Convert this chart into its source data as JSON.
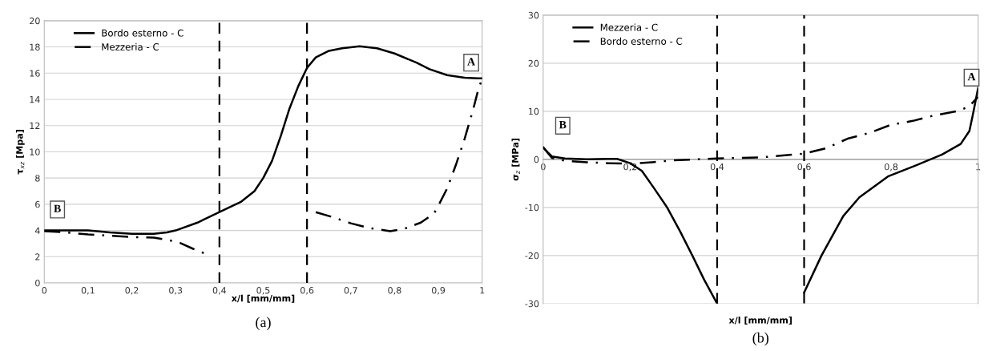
{
  "chart_data": [
    {
      "type": "line",
      "xlabel": "x/l [mm/mm]",
      "ylabel": "τ$_{xz}$ [Mpa]",
      "xlim": [
        0,
        1
      ],
      "ylim": [
        0,
        20
      ],
      "xticks": [
        0,
        {
          "value": 0.1,
          "label": "0,1"
        },
        {
          "value": 0.2,
          "label": "0,2"
        },
        {
          "value": 0.3,
          "label": "0,3"
        },
        {
          "value": 0.4,
          "label": "0,4"
        },
        {
          "value": 0.5,
          "label": "0,5"
        },
        {
          "value": 0.6,
          "label": "0,6"
        },
        {
          "value": 0.7,
          "label": "0,7"
        },
        {
          "value": 0.8,
          "label": "0,8"
        },
        {
          "value": 0.9,
          "label": "0,9"
        },
        1
      ],
      "yticks": [
        0,
        2,
        4,
        6,
        8,
        10,
        12,
        14,
        16,
        18,
        20
      ],
      "grid": "y",
      "legend": "top left",
      "series": [
        {
          "name": "Bordo esterno - C",
          "color": "#000000",
          "line_style": "solid",
          "x": [
            0,
            0.1,
            0.15,
            0.2,
            0.25,
            0.28,
            0.3,
            0.35,
            0.4,
            0.45,
            0.48,
            0.5,
            0.52,
            0.54,
            0.56,
            0.58,
            0.6,
            0.62,
            0.65,
            0.68,
            0.72,
            0.76,
            0.8,
            0.85,
            0.88,
            0.92,
            0.96,
            0.99,
            1
          ],
          "values": [
            4,
            4,
            3.85,
            3.75,
            3.75,
            3.85,
            4,
            4.6,
            5.4,
            6.2,
            7,
            8,
            9.3,
            11.2,
            13.3,
            15,
            16.4,
            17.2,
            17.7,
            17.9,
            18.05,
            17.9,
            17.5,
            16.8,
            16.3,
            15.85,
            15.65,
            15.6,
            15.6
          ]
        },
        {
          "name": "Mezzeria - C",
          "color": "#000000",
          "line_style": "dashdot",
          "x": [
            0,
            0.05,
            0.1,
            0.15,
            0.2,
            0.25,
            0.28,
            0.31,
            0.34,
            0.37,
            0.5,
            0.62,
            0.66,
            0.7,
            0.74,
            0.79,
            0.82,
            0.86,
            0.89,
            0.9,
            0.92,
            0.94,
            0.96,
            0.98,
            0.99,
            1
          ],
          "values": [
            3.95,
            3.85,
            3.7,
            3.6,
            3.5,
            3.45,
            3.3,
            3.05,
            2.6,
            2.2,
            null,
            5.4,
            5,
            4.55,
            4.2,
            3.95,
            4.1,
            4.6,
            5.3,
            5.9,
            7.2,
            9,
            11,
            13.3,
            14.6,
            15.6
          ]
        }
      ],
      "ref_lines": [
        {
          "axis": "x",
          "value": 0.4,
          "color": "#000000",
          "line_style": "dashed"
        },
        {
          "axis": "x",
          "value": 0.6,
          "color": "#000000",
          "line_style": "dashed"
        }
      ],
      "annotations": [
        {
          "text": "B",
          "x": 0.03,
          "y": 5.6
        },
        {
          "text": "A",
          "x": 0.975,
          "y": 16.8
        },
        "(a)"
      ]
    },
    {
      "type": "line",
      "xlabel": "x/l [mm/mm]",
      "ylabel": "σ$_{z}$ [MPa]",
      "xlim": [
        0,
        1
      ],
      "ylim": [
        -30,
        30
      ],
      "xticks": [
        0,
        {
          "value": 0.2,
          "label": "0,2"
        },
        {
          "value": 0.4,
          "label": "0,4"
        },
        {
          "value": 0.6,
          "label": "0,6"
        },
        {
          "value": 0.8,
          "label": "0,8"
        },
        1
      ],
      "yticks": [
        -30,
        -20,
        -10,
        0,
        10,
        20,
        30
      ],
      "grid": "y",
      "legend": "top left",
      "series": [
        {
          "name": "Mezzeria - C",
          "color": "#000000",
          "line_style": "solid",
          "x": [
            0,
            0.01,
            0.02,
            0.05,
            0.1,
            0.15,
            0.17,
            0.2,
            0.227,
            0.255,
            0.285,
            0.315,
            0.343,
            0.37,
            0.4,
            0.5,
            0.6,
            0.64,
            0.69,
            0.727,
            0.794,
            0.856,
            0.917,
            0.96,
            0.98,
            0.988,
            1
          ],
          "values": [
            2.5,
            1.5,
            0.6,
            0.2,
            0,
            0.1,
            0.1,
            -0.8,
            -2.4,
            -6,
            -10,
            -15,
            -20,
            -25,
            -30,
            null,
            -27.7,
            -20,
            -11.8,
            -7.9,
            -3.5,
            -1.3,
            1,
            3.2,
            5.9,
            9.3,
            14.8
          ]
        },
        {
          "name": "Bordo esterno - C",
          "color": "#000000",
          "line_style": "dashdot",
          "x": [
            0,
            0.02,
            0.05,
            0.1,
            0.15,
            0.2,
            0.25,
            0.3,
            0.4,
            0.5,
            0.6,
            0.65,
            0.7,
            0.75,
            0.8,
            0.85,
            0.893,
            0.95,
            0.978,
            1
          ],
          "values": [
            2.5,
            0.3,
            -0.3,
            -0.6,
            -0.8,
            -0.9,
            -0.6,
            -0.2,
            0.2,
            0.4,
            1.2,
            2.3,
            4.3,
            5.5,
            7.2,
            8,
            9,
            10,
            10.9,
            13
          ]
        }
      ],
      "ref_lines": [
        {
          "axis": "x",
          "value": 0.4,
          "color": "#000000",
          "line_style": "dashed"
        },
        {
          "axis": "x",
          "value": 0.6,
          "color": "#000000",
          "line_style": "dashed"
        }
      ],
      "annotations": [
        {
          "text": "B",
          "x": 0.045,
          "y": 7
        },
        {
          "text": "A",
          "x": 0.985,
          "y": 17
        },
        "(b)"
      ]
    }
  ]
}
